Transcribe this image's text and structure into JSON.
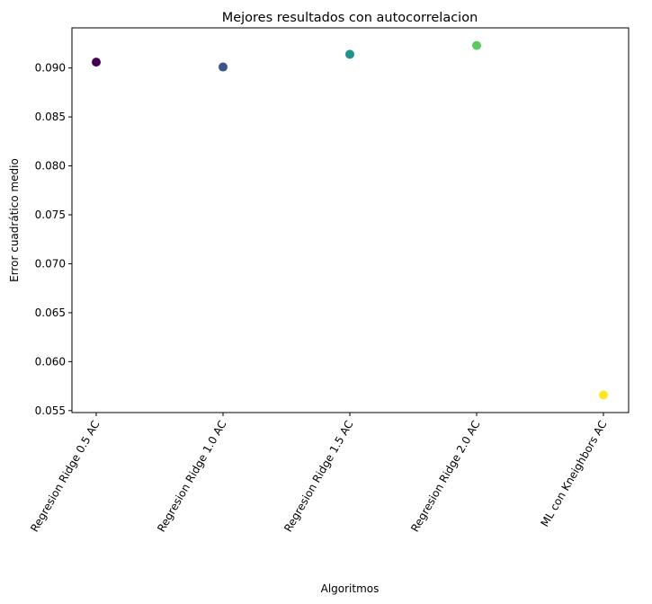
{
  "chart_data": {
    "type": "scatter",
    "title": "Mejores resultados con autocorrelacion",
    "xlabel": "Algoritmos",
    "ylabel": "Error cuadrático medio",
    "categories": [
      "Regresion Ridge 0.5 AC",
      "Regresion Ridge 1.0 AC",
      "Regresion Ridge 1.5 AC",
      "Regresion Ridge 2.0 AC",
      "ML con Kneighbors AC"
    ],
    "values": [
      0.0906,
      0.0901,
      0.0914,
      0.0923,
      0.0566
    ],
    "colors": [
      "#440154",
      "#3b528b",
      "#21918c",
      "#5ec962",
      "#fde725"
    ],
    "yticks": [
      0.055,
      0.06,
      0.065,
      0.07,
      0.075,
      0.08,
      0.085,
      0.09
    ],
    "ytick_labels": [
      "0.055",
      "0.060",
      "0.065",
      "0.070",
      "0.075",
      "0.080",
      "0.085",
      "0.090"
    ],
    "ylim": [
      0.0548,
      0.0941
    ],
    "grid": false,
    "legend": "none"
  }
}
